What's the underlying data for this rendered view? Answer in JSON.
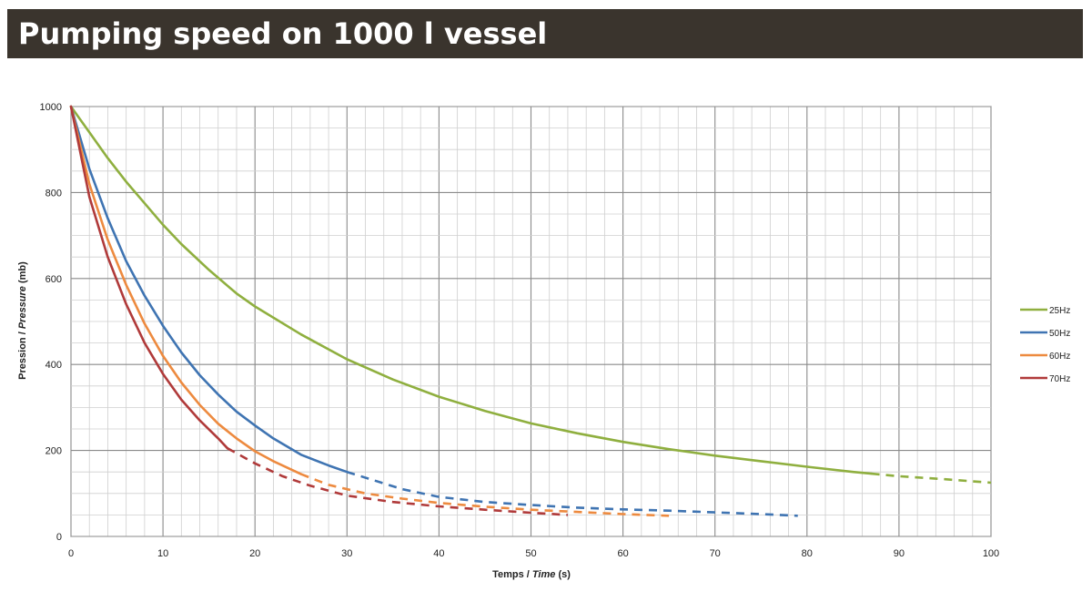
{
  "header": {
    "title": "Pumping speed on 1000 l vessel"
  },
  "chart_data": {
    "type": "line",
    "title": "",
    "xlabel": "Temps / Time  (s)",
    "xlabel_parts": [
      "Temps / ",
      "Time",
      "  (s)"
    ],
    "ylabel": "Pression / Pressure (mb)",
    "ylabel_parts": [
      "Pression / ",
      "Pressure",
      " (mb)"
    ],
    "xlim": [
      0,
      100
    ],
    "ylim": [
      0,
      1000
    ],
    "xticks": [
      0,
      10,
      20,
      30,
      40,
      50,
      60,
      70,
      80,
      90,
      100
    ],
    "yticks": [
      0,
      200,
      400,
      600,
      800,
      1000
    ],
    "x_minor_step": 2,
    "y_minor_step": 50,
    "grid": true,
    "legend_position": "right",
    "series": [
      {
        "name": "25Hz",
        "color": "#8faf3f",
        "solid": [
          [
            0,
            1000
          ],
          [
            2,
            940
          ],
          [
            4,
            880
          ],
          [
            6,
            825
          ],
          [
            8,
            775
          ],
          [
            10,
            725
          ],
          [
            12,
            680
          ],
          [
            15,
            620
          ],
          [
            18,
            565
          ],
          [
            20,
            535
          ],
          [
            25,
            470
          ],
          [
            30,
            412
          ],
          [
            35,
            365
          ],
          [
            40,
            325
          ],
          [
            45,
            292
          ],
          [
            50,
            263
          ],
          [
            55,
            240
          ],
          [
            60,
            220
          ],
          [
            65,
            203
          ],
          [
            70,
            188
          ],
          [
            75,
            175
          ],
          [
            80,
            162
          ],
          [
            85,
            150
          ],
          [
            87,
            146
          ]
        ],
        "dashed": [
          [
            87,
            146
          ],
          [
            90,
            140
          ],
          [
            95,
            133
          ],
          [
            100,
            125
          ]
        ]
      },
      {
        "name": "50Hz",
        "color": "#3f74b2",
        "solid": [
          [
            0,
            1000
          ],
          [
            2,
            855
          ],
          [
            4,
            740
          ],
          [
            6,
            640
          ],
          [
            8,
            560
          ],
          [
            10,
            490
          ],
          [
            12,
            428
          ],
          [
            14,
            375
          ],
          [
            16,
            330
          ],
          [
            18,
            290
          ],
          [
            20,
            258
          ],
          [
            22,
            228
          ],
          [
            25,
            190
          ],
          [
            28,
            165
          ],
          [
            30,
            150
          ]
        ],
        "dashed": [
          [
            30,
            150
          ],
          [
            33,
            130
          ],
          [
            36,
            110
          ],
          [
            40,
            92
          ],
          [
            45,
            80
          ],
          [
            50,
            73
          ],
          [
            55,
            67
          ],
          [
            60,
            63
          ],
          [
            65,
            60
          ],
          [
            70,
            56
          ],
          [
            75,
            52
          ],
          [
            79,
            48
          ]
        ]
      },
      {
        "name": "60Hz",
        "color": "#ed8a3f",
        "solid": [
          [
            0,
            1000
          ],
          [
            2,
            820
          ],
          [
            4,
            690
          ],
          [
            6,
            585
          ],
          [
            8,
            495
          ],
          [
            10,
            420
          ],
          [
            12,
            358
          ],
          [
            14,
            306
          ],
          [
            16,
            262
          ],
          [
            18,
            228
          ],
          [
            20,
            198
          ],
          [
            22,
            175
          ],
          [
            25,
            145
          ]
        ],
        "dashed": [
          [
            25,
            145
          ],
          [
            28,
            120
          ],
          [
            32,
            100
          ],
          [
            36,
            88
          ],
          [
            40,
            78
          ],
          [
            45,
            69
          ],
          [
            50,
            62
          ],
          [
            55,
            57
          ],
          [
            60,
            52
          ],
          [
            65,
            48
          ]
        ]
      },
      {
        "name": "70Hz",
        "color": "#b03a3a",
        "solid": [
          [
            0,
            1000
          ],
          [
            2,
            790
          ],
          [
            4,
            650
          ],
          [
            6,
            540
          ],
          [
            8,
            450
          ],
          [
            10,
            378
          ],
          [
            12,
            318
          ],
          [
            14,
            270
          ],
          [
            16,
            228
          ],
          [
            17,
            205
          ]
        ],
        "dashed": [
          [
            17,
            205
          ],
          [
            20,
            170
          ],
          [
            23,
            140
          ],
          [
            26,
            118
          ],
          [
            30,
            95
          ],
          [
            35,
            80
          ],
          [
            40,
            70
          ],
          [
            45,
            62
          ],
          [
            50,
            55
          ],
          [
            54,
            50
          ]
        ]
      }
    ]
  }
}
